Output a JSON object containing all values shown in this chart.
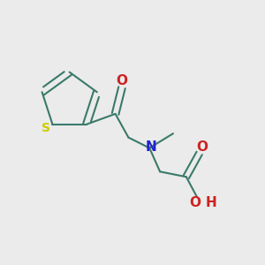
{
  "background_color": "#ebebeb",
  "bond_color": "#3a7a6a",
  "S_color": "#cccc00",
  "N_color": "#2222cc",
  "O_color": "#cc2222",
  "bond_width": 1.5,
  "figsize": [
    3.0,
    3.0
  ],
  "dpi": 100,
  "xlim": [
    0.0,
    1.0
  ],
  "ylim": [
    0.0,
    1.0
  ]
}
